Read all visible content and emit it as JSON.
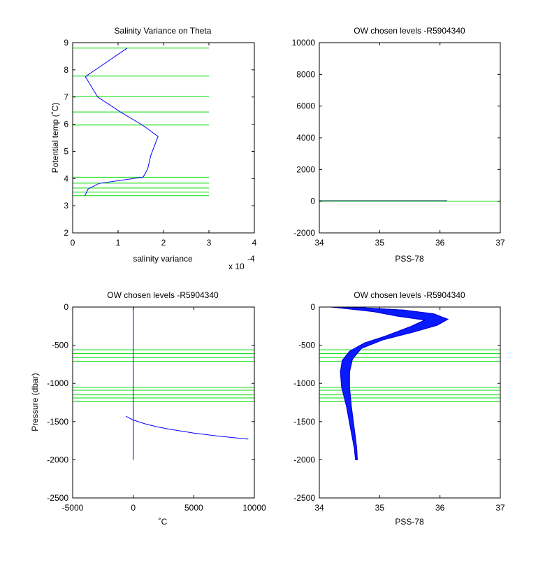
{
  "colors": {
    "background": "#ffffff",
    "axes": "#000000",
    "level_lines": "#00dd00",
    "profile": "#0000ff",
    "salinity_fill": "#0a1aff",
    "scatter_line": "#00305a"
  },
  "chart_data": [
    {
      "id": "p1",
      "type": "line",
      "title": "Salinity Variance on Theta",
      "xlabel": "salinity variance",
      "x_exponent_label": "x 10",
      "x_exponent_power": "-4",
      "ylabel": "Potential temp (˚C)",
      "xlim": [
        0,
        4
      ],
      "ylim": [
        2,
        9
      ],
      "xticks": [
        0,
        1,
        2,
        3,
        4
      ],
      "yticks": [
        2,
        3,
        4,
        5,
        6,
        7,
        8,
        9
      ],
      "series": [
        {
          "style": "profile",
          "x": [
            0.27,
            0.34,
            0.58,
            1.55,
            1.65,
            1.72,
            1.88,
            1.55,
            1.05,
            0.55,
            0.28,
            1.2
          ],
          "y": [
            3.37,
            3.62,
            3.82,
            4.05,
            4.35,
            4.85,
            5.55,
            5.95,
            6.45,
            7.0,
            7.75,
            8.8
          ]
        }
      ],
      "hlines": {
        "values": [
          3.37,
          3.5,
          3.65,
          3.83,
          4.05,
          5.97,
          6.45,
          7.02,
          7.77,
          8.8
        ],
        "x_from": 0.0,
        "x_to": 3.0
      }
    },
    {
      "id": "p2",
      "type": "line",
      "title": "OW chosen levels -R5904340",
      "xlabel": "PSS-78",
      "ylabel": "",
      "xlim": [
        34,
        37
      ],
      "ylim": [
        -2000,
        10000
      ],
      "xticks": [
        34,
        35,
        36,
        37
      ],
      "yticks": [
        -2000,
        0,
        2000,
        4000,
        6000,
        8000,
        10000
      ],
      "series": [
        {
          "style": "level",
          "x": [
            34,
            37
          ],
          "y": [
            0,
            0
          ]
        },
        {
          "style": "dark",
          "x": [
            34,
            36.12
          ],
          "y": [
            30,
            30
          ]
        }
      ]
    },
    {
      "id": "p3",
      "type": "line",
      "title": "OW chosen levels -R5904340",
      "xlabel": "˚C",
      "ylabel": "Pressure (dbar)",
      "xlim": [
        -5000,
        10000
      ],
      "ylim": [
        -2500,
        0
      ],
      "xticks": [
        -5000,
        0,
        5000,
        10000
      ],
      "yticks": [
        -2500,
        -2000,
        -1500,
        -1000,
        -500,
        0
      ],
      "series": [
        {
          "style": "profile",
          "x": [
            0,
            0
          ],
          "y": [
            0,
            -2000
          ]
        },
        {
          "style": "profile",
          "x": [
            -600,
            0,
            1000,
            2000,
            3000,
            5000,
            7000,
            9500
          ],
          "y": [
            -1430,
            -1480,
            -1530,
            -1570,
            -1600,
            -1650,
            -1690,
            -1730
          ]
        }
      ],
      "hlines": {
        "values": [
          -560,
          -610,
          -660,
          -710,
          -1050,
          -1090,
          -1150,
          -1190,
          -1240
        ],
        "x_from": -5000,
        "x_to": 10000
      }
    },
    {
      "id": "p4",
      "type": "area",
      "title": "OW chosen levels -R5904340",
      "xlabel": "PSS-78",
      "ylabel": "",
      "xlim": [
        34,
        37
      ],
      "ylim": [
        -2500,
        0
      ],
      "xticks": [
        34,
        35,
        36,
        37
      ],
      "yticks": [
        -2500,
        -2000,
        -1500,
        -1000,
        -500,
        0
      ],
      "band": {
        "left": {
          "x": [
            34.2,
            34.9,
            35.3,
            35.75,
            35.5,
            35.1,
            34.75,
            34.5,
            34.38,
            34.35,
            34.37,
            34.45,
            34.52,
            34.58,
            34.6
          ],
          "y": [
            0,
            -60,
            -120,
            -170,
            -260,
            -380,
            -470,
            -580,
            -700,
            -850,
            -1050,
            -1300,
            -1600,
            -1850,
            -2000
          ]
        },
        "right": {
          "x": [
            34.5,
            35.4,
            35.9,
            36.13,
            35.95,
            35.55,
            35.05,
            34.7,
            34.55,
            34.5,
            34.5,
            34.53,
            34.58,
            34.62,
            34.63
          ],
          "y": [
            0,
            -40,
            -90,
            -160,
            -240,
            -330,
            -430,
            -540,
            -680,
            -850,
            -1050,
            -1300,
            -1600,
            -1850,
            -2000
          ]
        }
      },
      "hlines": {
        "values": [
          -560,
          -610,
          -660,
          -710,
          -1050,
          -1090,
          -1150,
          -1190,
          -1240
        ],
        "x_from": 34,
        "x_to": 37
      }
    }
  ]
}
